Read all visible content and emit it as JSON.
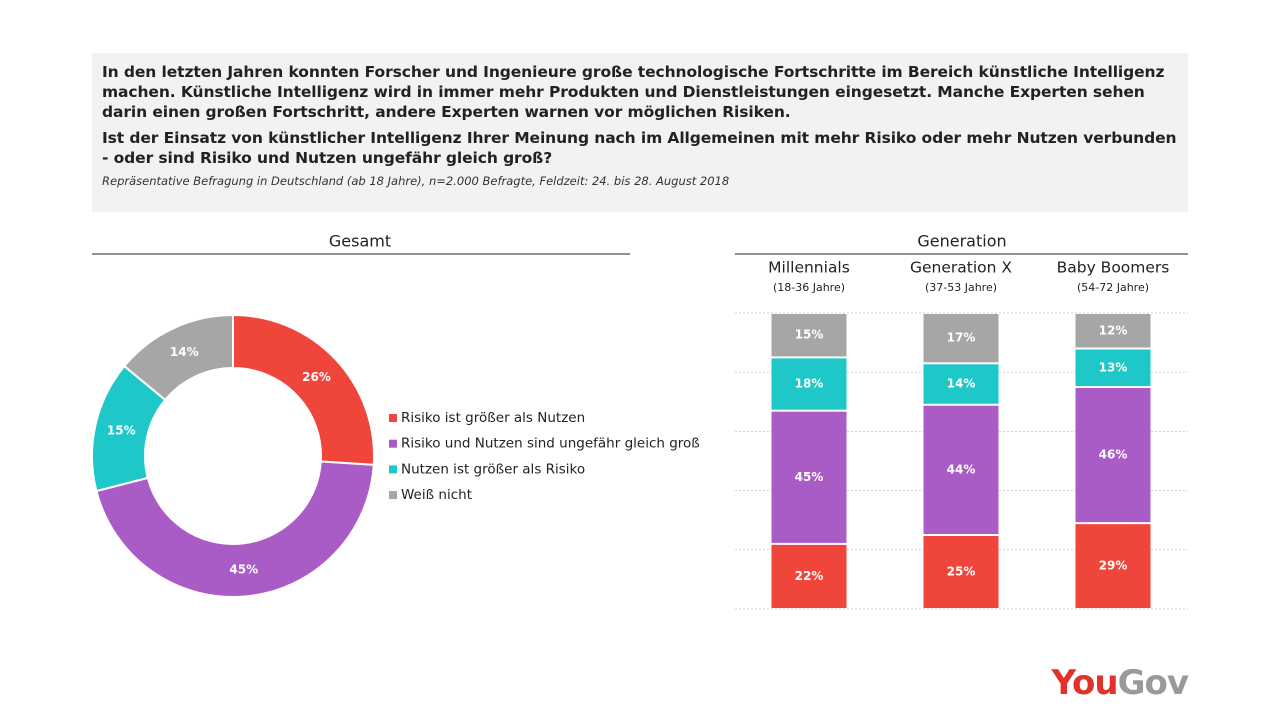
{
  "header": {
    "intro": "In den letzten Jahren konnten Forscher und Ingenieure große technologische Fortschritte im Bereich künstliche Intelligenz machen. Künstliche Intelligenz wird in immer mehr Produkten und Dienstleistungen eingesetzt. Manche Experten sehen darin einen großen Fortschritt, andere Experten warnen vor möglichen Risiken.",
    "question": "Ist der Einsatz von künstlicher Intelligenz Ihrer Meinung nach im Allgemeinen mit mehr Risiko oder mehr Nutzen verbunden - oder sind Risiko und Nutzen ungefähr gleich groß?",
    "note": "Repräsentative Befragung in Deutschland (ab 18 Jahre), n=2.000 Befragte, Feldzeit: 24. bis 28. August 2018"
  },
  "chart_data": [
    {
      "type": "donut",
      "title": "Gesamt",
      "categories": [
        "Risiko ist größer als Nutzen",
        "Risiko und Nutzen sind ungefähr gleich groß",
        "Nutzen ist größer als Risiko",
        "Weiß nicht"
      ],
      "values": [
        26,
        45,
        15,
        14
      ],
      "value_labels": [
        "26%",
        "45%",
        "15%",
        "14%"
      ],
      "colors": [
        "#f0453a",
        "#a95bc6",
        "#1ec8c8",
        "#a6a6a6"
      ]
    },
    {
      "type": "stacked_bar",
      "title": "Generation",
      "categories": [
        "Millennials",
        "Generation X",
        "Baby Boomers"
      ],
      "subtitles": [
        "(18-36 Jahre)",
        "(37-53 Jahre)",
        "(54-72 Jahre)"
      ],
      "series": [
        {
          "color": "#f0453a",
          "values": [
            22,
            25,
            29
          ],
          "value_labels": [
            "22%",
            "25%",
            "29%"
          ]
        },
        {
          "color": "#a95bc6",
          "values": [
            45,
            44,
            46
          ],
          "value_labels": [
            "45%",
            "44%",
            "46%"
          ]
        },
        {
          "color": "#1ec8c8",
          "values": [
            18,
            14,
            13
          ],
          "value_labels": [
            "18%",
            "14%",
            "13%"
          ]
        },
        {
          "color": "#a6a6a6",
          "values": [
            15,
            17,
            12
          ],
          "value_labels": [
            "15%",
            "17%",
            "12%"
          ]
        }
      ],
      "ylim": [
        0,
        100
      ],
      "yticks": [
        0,
        20,
        40,
        60,
        80,
        100
      ],
      "grid": true
    }
  ],
  "logo": [
    "You",
    "Gov"
  ]
}
